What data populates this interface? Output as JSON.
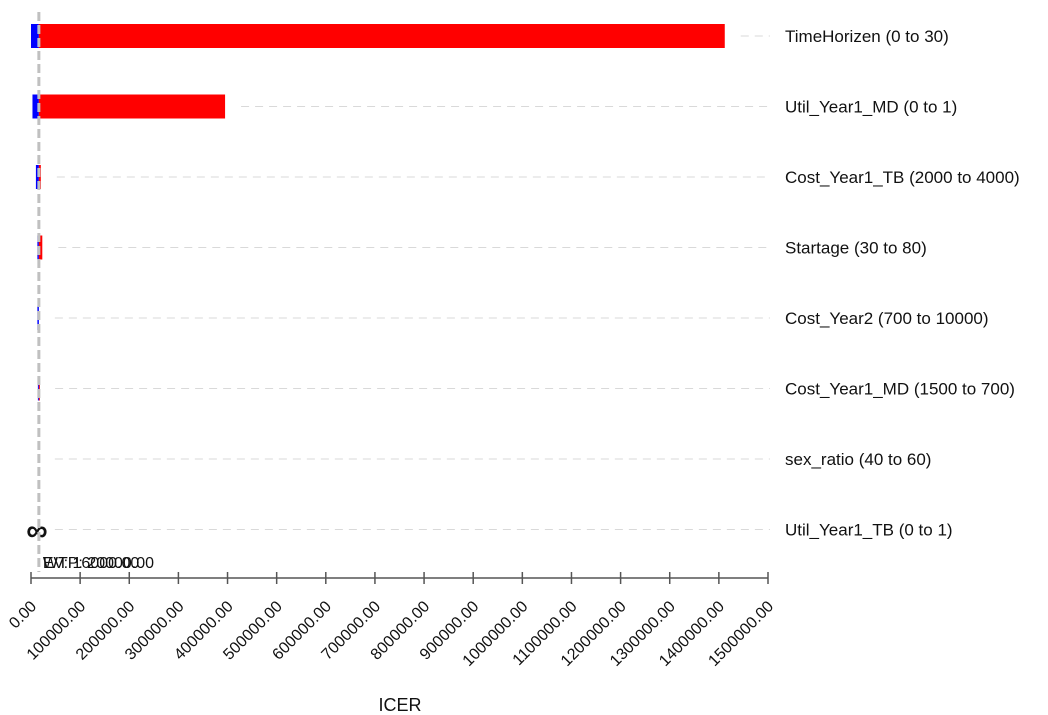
{
  "chart_data": {
    "type": "bar",
    "subtype": "tornado",
    "xlabel": "ICER",
    "xlim": [
      0,
      1500000
    ],
    "xticks": [
      0,
      100000,
      200000,
      300000,
      400000,
      500000,
      600000,
      700000,
      800000,
      900000,
      1000000,
      1100000,
      1200000,
      1300000,
      1400000,
      1500000
    ],
    "xtick_labels": [
      "0.00",
      "100000.00",
      "200000.00",
      "300000.00",
      "400000.00",
      "500000.00",
      "600000.00",
      "700000.00",
      "800000.00",
      "900000.00",
      "1000000.00",
      "1100000.00",
      "1200000.00",
      "1300000.00",
      "1400000.00",
      "1500000.00"
    ],
    "base_value": 16000,
    "base_labels": [
      "EV: 16000.00",
      "WTP: 20000.00"
    ],
    "grid": "dashed-horizontal",
    "colors": {
      "low": "#0000ff",
      "high": "#ff0000",
      "baseline": "#c0c0c0",
      "grid": "#d9d9d9"
    },
    "parameters": [
      {
        "label": "TimeHorizen (0 to 30)",
        "low": 0,
        "high": 1412000,
        "inf_marker": ""
      },
      {
        "label": "Util_Year1_MD (0 to 1)",
        "low": 3000,
        "high": 395000,
        "inf_marker": ""
      },
      {
        "label": "Cost_Year1_TB (2000 to 4000)",
        "low": 10000,
        "high": 20000,
        "inf_marker": ""
      },
      {
        "label": "Startage (30 to 80)",
        "low": 13000,
        "high": 23000,
        "inf_marker": ""
      },
      {
        "label": "Cost_Year2 (700 to 10000)",
        "low": 13000,
        "high": 16000,
        "inf_marker": ""
      },
      {
        "label": "Cost_Year1_MD (1500 to 700)",
        "low": 14000,
        "high": 16500,
        "inf_marker": ""
      },
      {
        "label": "sex_ratio (40 to 60)",
        "low": 16000,
        "high": 16000,
        "inf_marker": ""
      },
      {
        "label": "Util_Year1_TB (0 to 1)",
        "low": 16000,
        "high": 16000,
        "inf_marker": "∞"
      }
    ]
  }
}
